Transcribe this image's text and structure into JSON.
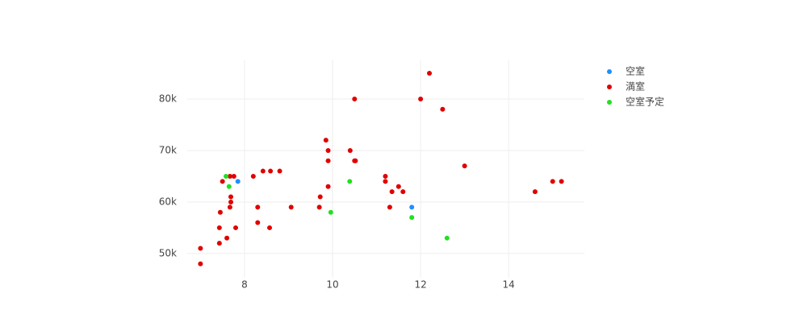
{
  "chart_data": {
    "type": "scatter",
    "xlim": [
      6.7,
      15.72
    ],
    "ylim": [
      45300,
      87500
    ],
    "xticks": [
      8,
      10,
      12,
      14
    ],
    "yticks": [
      {
        "value": 50000,
        "label": "50k"
      },
      {
        "value": 60000,
        "label": "60k"
      },
      {
        "value": 70000,
        "label": "70k"
      },
      {
        "value": 80000,
        "label": "80k"
      }
    ],
    "grid": true,
    "legend": "right",
    "series": [
      {
        "name": "空室",
        "color": "#1f8fff",
        "x": [
          7.85,
          11.8
        ],
        "values": [
          64000,
          59000
        ]
      },
      {
        "name": "満室",
        "color": "#e00000",
        "x": [
          12.2,
          10.5,
          12,
          12.5,
          9.85,
          9.9,
          10.4,
          9.9,
          10.5,
          10.52,
          13,
          8.2,
          8.42,
          8.59,
          8.8,
          7.67,
          7.76,
          7.5,
          11.2,
          11.2,
          11.5,
          9.9,
          11.35,
          11.6,
          14.6,
          15,
          15.2,
          7.69,
          7.69,
          9.72,
          9.7,
          8.3,
          9.06,
          7.67,
          11.3,
          7.45,
          8.3,
          7.43,
          8.57,
          7.8,
          7.6,
          7.43,
          7,
          7
        ],
        "values": [
          85000,
          80000,
          80000,
          78000,
          72000,
          70000,
          70000,
          68000,
          68000,
          68000,
          67000,
          65000,
          66000,
          66000,
          66000,
          65000,
          65000,
          64000,
          65000,
          64000,
          63000,
          63000,
          62000,
          62000,
          62000,
          64000,
          64000,
          61000,
          60000,
          61000,
          59000,
          59000,
          59000,
          59000,
          59000,
          58000,
          56000,
          55000,
          55000,
          55000,
          53000,
          52000,
          51000,
          48000
        ]
      },
      {
        "name": "空室予定",
        "color": "#22e022",
        "x": [
          7.58,
          7.65,
          9.96,
          10.39,
          11.8,
          12.6
        ],
        "values": [
          65000,
          63000,
          58000,
          64000,
          57000,
          53000
        ]
      }
    ]
  }
}
